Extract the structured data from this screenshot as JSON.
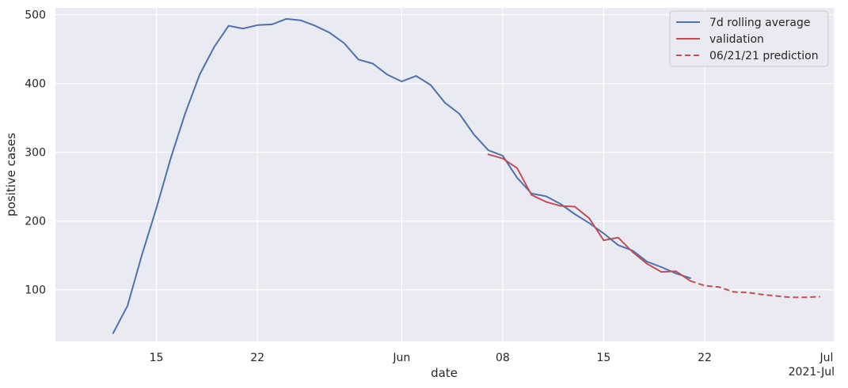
{
  "chart_data": {
    "type": "line",
    "xlabel": "date",
    "ylabel": "positive cases",
    "xlim": [
      "2021-05-08",
      "2021-07-01"
    ],
    "ylim": [
      25,
      510
    ],
    "grid": true,
    "legend": "top-right",
    "x_ticks": [
      {
        "date": "2021-05-15",
        "label": "15"
      },
      {
        "date": "2021-05-22",
        "label": "22"
      },
      {
        "date": "2021-06-01",
        "label": "Jun"
      },
      {
        "date": "2021-06-08",
        "label": "08"
      },
      {
        "date": "2021-06-15",
        "label": "15"
      },
      {
        "date": "2021-06-22",
        "label": "22"
      },
      {
        "date": "2021-07-01",
        "label": "Jul"
      }
    ],
    "x_tick_sublabel": "2021-Jul",
    "y_ticks": [
      100,
      200,
      300,
      400,
      500
    ],
    "series": [
      {
        "name": "7d rolling average",
        "color": "#4c72b0",
        "style": "solid",
        "x": [
          "2021-05-12",
          "2021-05-13",
          "2021-05-14",
          "2021-05-15",
          "2021-05-16",
          "2021-05-17",
          "2021-05-18",
          "2021-05-19",
          "2021-05-20",
          "2021-05-21",
          "2021-05-22",
          "2021-05-23",
          "2021-05-24",
          "2021-05-25",
          "2021-05-26",
          "2021-05-27",
          "2021-05-28",
          "2021-05-29",
          "2021-05-30",
          "2021-05-31",
          "2021-06-01",
          "2021-06-02",
          "2021-06-03",
          "2021-06-04",
          "2021-06-05",
          "2021-06-06",
          "2021-06-07",
          "2021-06-08",
          "2021-06-09",
          "2021-06-10",
          "2021-06-11",
          "2021-06-12",
          "2021-06-13",
          "2021-06-14",
          "2021-06-15",
          "2021-06-16",
          "2021-06-17",
          "2021-06-18",
          "2021-06-19",
          "2021-06-20",
          "2021-06-21"
        ],
        "y": [
          37,
          77,
          151,
          219,
          292,
          357,
          413,
          453,
          484,
          480,
          485,
          486,
          494,
          492,
          484,
          474,
          459,
          435,
          429,
          413,
          403,
          411,
          398,
          372,
          356,
          326,
          303,
          295,
          263,
          240,
          236,
          225,
          210,
          197,
          182,
          165,
          157,
          141,
          133,
          124,
          117
        ]
      },
      {
        "name": "validation",
        "color": "#c44e52",
        "style": "solid",
        "x": [
          "2021-06-07",
          "2021-06-08",
          "2021-06-09",
          "2021-06-10",
          "2021-06-11",
          "2021-06-12",
          "2021-06-13",
          "2021-06-14",
          "2021-06-15",
          "2021-06-16",
          "2021-06-17",
          "2021-06-18",
          "2021-06-19",
          "2021-06-20",
          "2021-06-21"
        ],
        "y": [
          297,
          291,
          277,
          238,
          228,
          222,
          221,
          204,
          172,
          176,
          155,
          138,
          126,
          127,
          113
        ]
      },
      {
        "name": "06/21/21 prediction",
        "color": "#c44e52",
        "style": "dashed",
        "x": [
          "2021-06-21",
          "2021-06-22",
          "2021-06-23",
          "2021-06-24",
          "2021-06-25",
          "2021-06-26",
          "2021-06-27",
          "2021-06-28",
          "2021-06-29",
          "2021-06-30"
        ],
        "y": [
          113,
          106,
          104,
          97,
          96,
          93,
          91,
          89,
          89,
          90
        ]
      }
    ]
  }
}
